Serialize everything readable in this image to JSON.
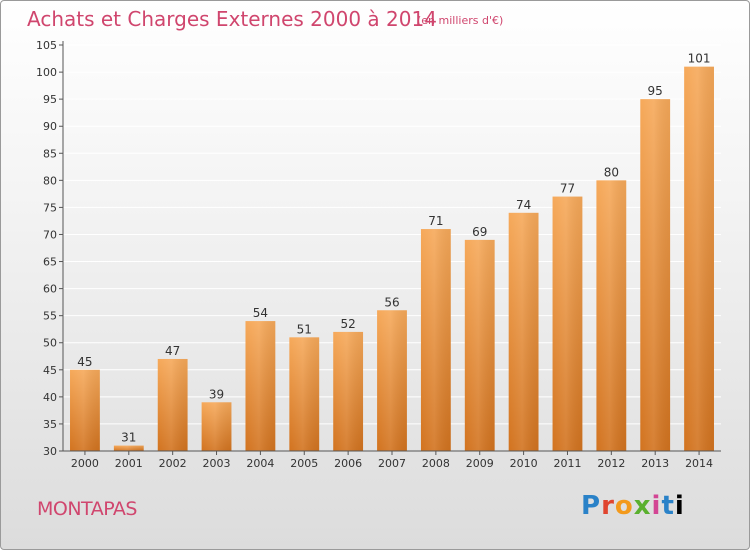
{
  "header": {
    "title": "Achats et Charges Externes 2000 à 2014",
    "subtitle": "(en milliers d'€)"
  },
  "footer": {
    "commune": "MONTAPAS",
    "logo_text": "Proxiti"
  },
  "colors": {
    "title": "#d0466e",
    "bar_top": "#f6a95a",
    "bar_bottom": "#d2731f",
    "grid": "#ffffff",
    "axis": "#555555"
  },
  "chart_data": {
    "type": "bar",
    "title": "Achats et Charges Externes 2000 à 2014",
    "xlabel": "",
    "ylabel": "",
    "categories": [
      "2000",
      "2001",
      "2002",
      "2003",
      "2004",
      "2005",
      "2006",
      "2007",
      "2008",
      "2009",
      "2010",
      "2011",
      "2012",
      "2013",
      "2014"
    ],
    "values": [
      45,
      31,
      47,
      39,
      54,
      51,
      52,
      56,
      71,
      69,
      74,
      77,
      80,
      95,
      101
    ],
    "ylim": [
      30,
      105
    ],
    "yticks": [
      30,
      35,
      40,
      45,
      50,
      55,
      60,
      65,
      70,
      75,
      80,
      85,
      90,
      95,
      100,
      105
    ],
    "grid": true,
    "data_labels": true
  }
}
